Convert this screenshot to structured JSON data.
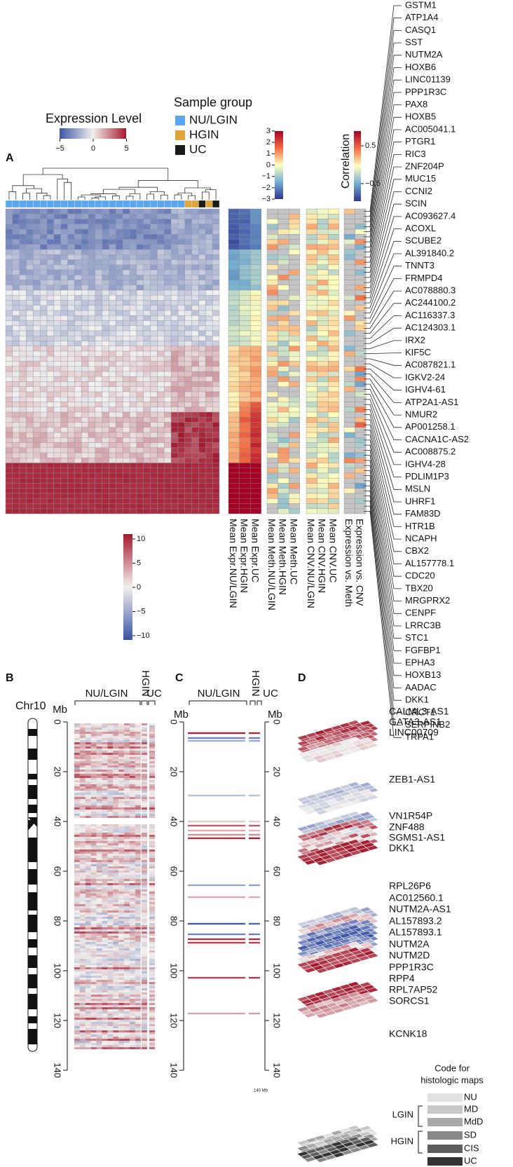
{
  "panel_a": {
    "label": "A",
    "expression_legend": {
      "title": "Expression Level",
      "ticks": [
        {
          "value": -5,
          "label": "−5"
        },
        0,
        5
      ]
    },
    "sample_group": {
      "title": "Sample group",
      "items": [
        {
          "name": "NU/LGIN",
          "color": "#5aa6ee"
        },
        {
          "name": "HGIN",
          "color": "#e1a33b"
        },
        {
          "name": "UC",
          "color": "#1a1a1a"
        }
      ]
    },
    "meth_scale": {
      "ticks": [
        3,
        2,
        1,
        0,
        {
          "value": -1,
          "label": "−1"
        },
        {
          "value": -2,
          "label": "−2"
        },
        {
          "value": -3,
          "label": "−3"
        }
      ]
    },
    "correlation_scale": {
      "title": "Correlation",
      "ticks": [
        0.5,
        {
          "value": -0.5,
          "label": "−0.5"
        }
      ]
    },
    "columns": [
      "Mean Expr.NU/LGIN",
      "Mean Expr.HGIN",
      "Mean Expr.UC",
      "Mean Meth.NU/LGIN",
      "Mean Meth.HGIN",
      "Mean Meth.UC",
      "Mean CNV.NU/LGIN",
      "Mean CNV.HGIN",
      "Mean CNV.UC",
      "Expression vs. Meth",
      "Expression vs. CNV"
    ],
    "genes": [
      "GSTM1",
      "ATP1A4",
      "CASQ1",
      "SST",
      "NUTM2A",
      "HOXB6",
      "LINC01139",
      "PPP1R3C",
      "PAX8",
      "HOXB5",
      "AC005041.1",
      "PTGR1",
      "RIC3",
      "ZNF204P",
      "MUC15",
      "CCNI2",
      "SCIN",
      "AC093627.4",
      "ACOXL",
      "SCUBE2",
      "AL391840.2",
      "TNNT3",
      "FRMPD4",
      "AC078880.3",
      "AC244100.2",
      "AC116337.3",
      "AC124303.1",
      "IRX2",
      "KIF5C",
      "AC087821.1",
      "IGKV2-24",
      "IGHV4-61",
      "ATP2A1-AS1",
      "NMUR2",
      "AP001258.1",
      "CACNA1C-AS2",
      "AC008875.2",
      "IGHV4-28",
      "PDLIM1P3",
      "MSLN",
      "UHRF1",
      "FAM83D",
      "HTR1B",
      "NCAPH",
      "CBX2",
      "AL157778.1",
      "CDC20",
      "TBX20",
      "MRGPRX2",
      "CENPF",
      "LRRC3B",
      "STC1",
      "FGFBP1",
      "EPHA3",
      "HOXB13",
      "AADAC",
      "DKK1",
      "CRCT1",
      "SERPINB2",
      "TRPA1"
    ],
    "heatmap_scale": {
      "ticks": [
        10,
        5,
        0,
        {
          "value": -5,
          "label": "−5"
        },
        {
          "value": -10,
          "label": "−10"
        }
      ]
    }
  },
  "panel_b": {
    "label": "B",
    "chromosome": "Chr10",
    "groups": [
      "NU/LGIN",
      "HGIN",
      "UC"
    ],
    "unit": "Mb",
    "ticks": [
      0,
      20,
      40,
      60,
      80,
      100,
      120,
      140
    ]
  },
  "panel_c": {
    "label": "C",
    "groups": [
      "NU/LGIN",
      "HGIN",
      "UC"
    ],
    "unit": "Mb",
    "ticks": [
      0,
      20,
      40,
      60,
      80,
      100,
      120,
      140
    ],
    "end_label": "140 Mb"
  },
  "panel_d": {
    "label": "D",
    "genes": [
      "CALML3-AS1",
      "GATA3-AS1",
      "LINC00709",
      "ZEB1-AS1",
      "VN1R54P",
      "ZNF488",
      "SGMS1-AS1",
      "DKK1",
      "RPL26P6",
      "AC012560.1",
      "NUTM2A-AS1",
      "AL157893.2",
      "AL157893.1",
      "NUTM2A",
      "NUTM2D",
      "PPP1R3C",
      "RPP4",
      "RPL7AP52",
      "SORCS1",
      "KCNK18"
    ],
    "legend_title": [
      "Code for",
      "histologic maps"
    ],
    "codes": [
      "NU",
      "MD",
      "MdD",
      "SD",
      "CIS",
      "UC"
    ],
    "groups": [
      "LGIN",
      "HGIN"
    ]
  }
}
